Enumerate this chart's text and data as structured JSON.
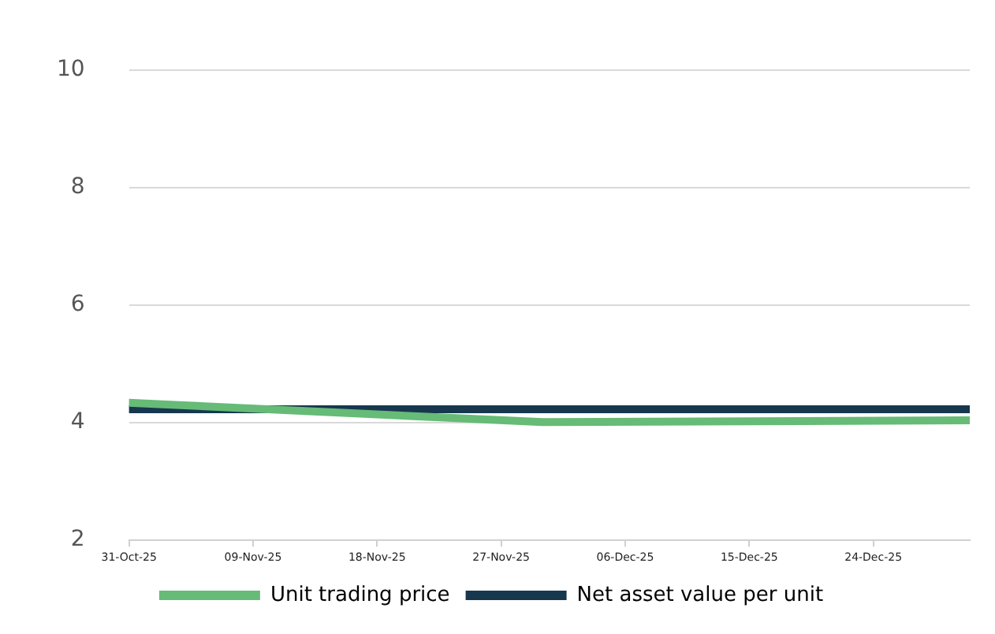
{
  "chart_data": {
    "type": "line",
    "x": [
      "--10-31",
      "--11-30",
      "--12-31"
    ],
    "series": [
      {
        "name": "Unit trading price",
        "color": "#66bb77",
        "values": [
          4.34,
          4.01,
          4.04
        ]
      },
      {
        "name": "Net asset value per unit",
        "color": "#17374f",
        "x": [
          "--10-31",
          "--12-31"
        ],
        "values": [
          4.23,
          4.23
        ]
      }
    ],
    "xlim": [
      "--10-31",
      "--12-31"
    ],
    "xticks": [
      {
        "value": "--10-31",
        "label": "31-Oct-25"
      },
      {
        "value": "--11-09",
        "label": "09-Nov-25"
      },
      {
        "value": "--11-18",
        "label": "18-Nov-25"
      },
      {
        "value": "--11-27",
        "label": "27-Nov-25"
      },
      {
        "value": "--12-06",
        "label": "06-Dec-25"
      },
      {
        "value": "--12-15",
        "label": "15-Dec-25"
      },
      {
        "value": "--12-24",
        "label": "24-Dec-25"
      }
    ],
    "ylim": [
      2,
      10
    ],
    "yticks": [
      2,
      4,
      6,
      8,
      10
    ],
    "grid": "y",
    "legend": "bottom",
    "marker": "none",
    "line_style": "solid"
  }
}
